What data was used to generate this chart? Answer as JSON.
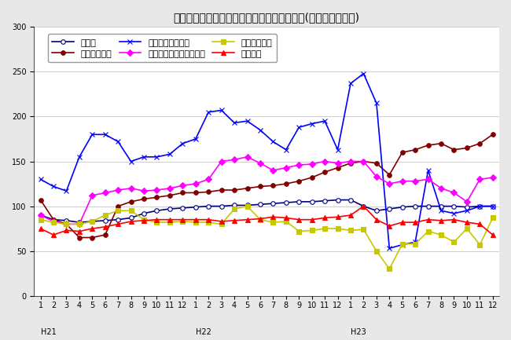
{
  "title": "三重県鉱工業生産及び主要業種別指数の推移(季節調整済指数)",
  "ylim": [
    0,
    300
  ],
  "yticks": [
    0,
    50,
    100,
    150,
    200,
    250,
    300
  ],
  "series": [
    {
      "name": "鉱工業",
      "color": "#000080",
      "marker": "o",
      "markersize": 4,
      "markerfacecolor": "white",
      "linewidth": 1.2,
      "values": [
        90,
        85,
        84,
        82,
        83,
        84,
        85,
        87,
        92,
        95,
        97,
        98,
        99,
        100,
        100,
        101,
        101,
        102,
        103,
        104,
        105,
        105,
        106,
        107,
        107,
        100,
        95,
        97,
        99,
        100,
        100,
        100,
        100,
        99,
        100,
        100
      ]
    },
    {
      "name": "一般機械工業",
      "color": "#800000",
      "marker": "o",
      "markersize": 4,
      "markerfacecolor": "#800000",
      "linewidth": 1.2,
      "values": [
        107,
        85,
        80,
        65,
        65,
        68,
        100,
        105,
        108,
        110,
        112,
        115,
        115,
        116,
        118,
        118,
        120,
        122,
        123,
        125,
        128,
        132,
        138,
        143,
        148,
        150,
        148,
        135,
        160,
        163,
        168,
        170,
        163,
        165,
        170,
        180
      ]
    },
    {
      "name": "情報通信機械工業",
      "color": "#0000FF",
      "marker": "x",
      "markersize": 5,
      "markerfacecolor": "#0000FF",
      "linewidth": 1.2,
      "values": [
        130,
        122,
        117,
        155,
        180,
        180,
        172,
        150,
        155,
        155,
        158,
        170,
        175,
        205,
        207,
        193,
        195,
        185,
        172,
        163,
        188,
        192,
        195,
        163,
        237,
        248,
        215,
        53,
        57,
        60,
        140,
        95,
        92,
        95,
        100,
        100
      ]
    },
    {
      "name": "電子部品・デバイス工業",
      "color": "#FF00FF",
      "marker": "D",
      "markersize": 4,
      "markerfacecolor": "#FF00FF",
      "linewidth": 1.2,
      "values": [
        90,
        83,
        80,
        80,
        112,
        115,
        118,
        120,
        117,
        118,
        120,
        123,
        125,
        130,
        150,
        152,
        155,
        148,
        140,
        143,
        146,
        147,
        150,
        148,
        150,
        150,
        133,
        125,
        128,
        128,
        130,
        120,
        115,
        105,
        130,
        132
      ]
    },
    {
      "name": "輸送機械工業",
      "color": "#C8C800",
      "marker": "s",
      "markersize": 4,
      "markerfacecolor": "#C8C800",
      "linewidth": 1.2,
      "values": [
        85,
        82,
        80,
        80,
        83,
        90,
        95,
        95,
        85,
        82,
        82,
        83,
        82,
        82,
        80,
        97,
        100,
        85,
        82,
        83,
        72,
        73,
        75,
        75,
        73,
        74,
        50,
        30,
        58,
        58,
        72,
        68,
        60,
        75,
        57,
        87
      ]
    },
    {
      "name": "化学工業",
      "color": "#FF0000",
      "marker": "^",
      "markersize": 4,
      "markerfacecolor": "#FF0000",
      "linewidth": 1.2,
      "values": [
        75,
        68,
        73,
        72,
        75,
        77,
        80,
        83,
        84,
        85,
        85,
        85,
        85,
        85,
        83,
        84,
        85,
        86,
        88,
        87,
        85,
        85,
        87,
        88,
        90,
        100,
        85,
        78,
        82,
        82,
        85,
        84,
        85,
        82,
        80,
        68
      ]
    }
  ],
  "fig_background": "#E8E8E8",
  "plot_background": "#FFFFFF",
  "grid_color": "#BBBBBB",
  "title_fontsize": 10,
  "legend_fontsize": 8,
  "tick_fontsize": 7,
  "year_labels": [
    "H21",
    "H22",
    "H23"
  ],
  "year_starts": [
    1,
    13,
    25
  ]
}
